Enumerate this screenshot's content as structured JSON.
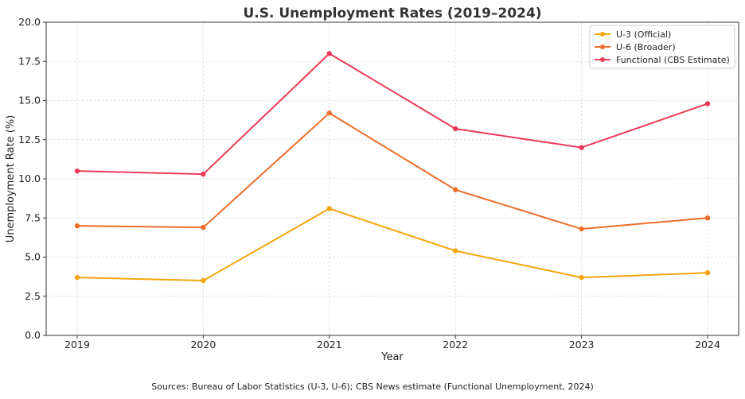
{
  "chart_data": {
    "type": "line",
    "title": "U.S. Unemployment Rates (2019–2024)",
    "xlabel": "Year",
    "ylabel": "Unemployment Rate (%)",
    "x": [
      "2019",
      "2020",
      "2021",
      "2022",
      "2023",
      "2024"
    ],
    "ylim": [
      0,
      20
    ],
    "yticks": [
      "0.0",
      "2.5",
      "5.0",
      "7.5",
      "10.0",
      "12.5",
      "15.0",
      "17.5",
      "20.0"
    ],
    "grid": true,
    "legend_position": "top-right",
    "series": [
      {
        "name": "U-3 (Official)",
        "color": "#f5a50c",
        "values": [
          3.7,
          3.5,
          8.1,
          5.4,
          3.7,
          4.0
        ]
      },
      {
        "name": "U-6 (Broader)",
        "color": "#ee6d2a",
        "values": [
          7.0,
          6.9,
          14.2,
          9.3,
          6.8,
          7.5
        ]
      },
      {
        "name": "Functional (CBS Estimate)",
        "color": "#ec3a5a",
        "values": [
          10.5,
          10.3,
          18.0,
          13.2,
          12.0,
          14.8
        ]
      }
    ]
  },
  "footnote": "Sources: Bureau of Labor Statistics (U-3, U-6); CBS News estimate (Functional Unemployment, 2024)"
}
